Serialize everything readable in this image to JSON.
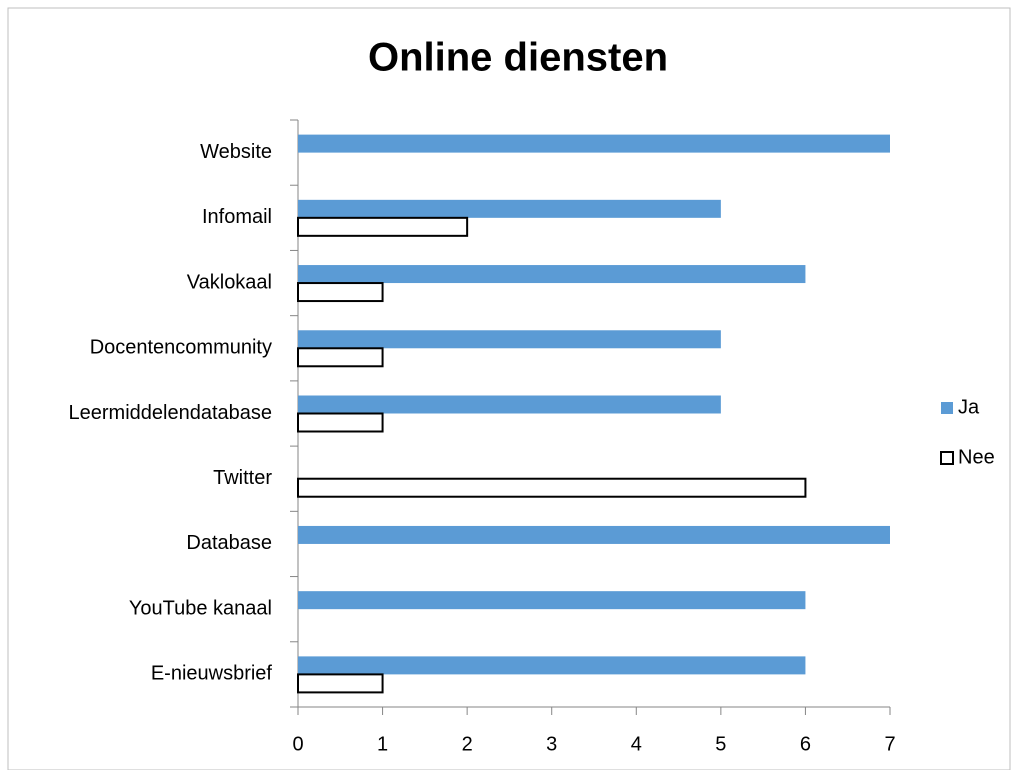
{
  "chart_data": {
    "type": "bar",
    "orientation": "horizontal",
    "title": "Online diensten",
    "categories": [
      "Website",
      "Infomail",
      "Vaklokaal",
      "Docentencommunity",
      "Leermiddelendatabase",
      "Twitter",
      "Database",
      "YouTube kanaal",
      "E-nieuwsbrief"
    ],
    "series": [
      {
        "name": "Ja",
        "color": "#5b9bd5",
        "values": [
          7,
          5,
          6,
          5,
          5,
          0,
          7,
          6,
          6
        ]
      },
      {
        "name": "Nee",
        "color": "#ffffff",
        "values": [
          0,
          2,
          1,
          1,
          1,
          6,
          0,
          0,
          1
        ]
      }
    ],
    "xlim": [
      0,
      7
    ],
    "xticks": [
      0,
      1,
      2,
      3,
      4,
      5,
      6,
      7
    ],
    "grid": false,
    "legend": "right"
  }
}
